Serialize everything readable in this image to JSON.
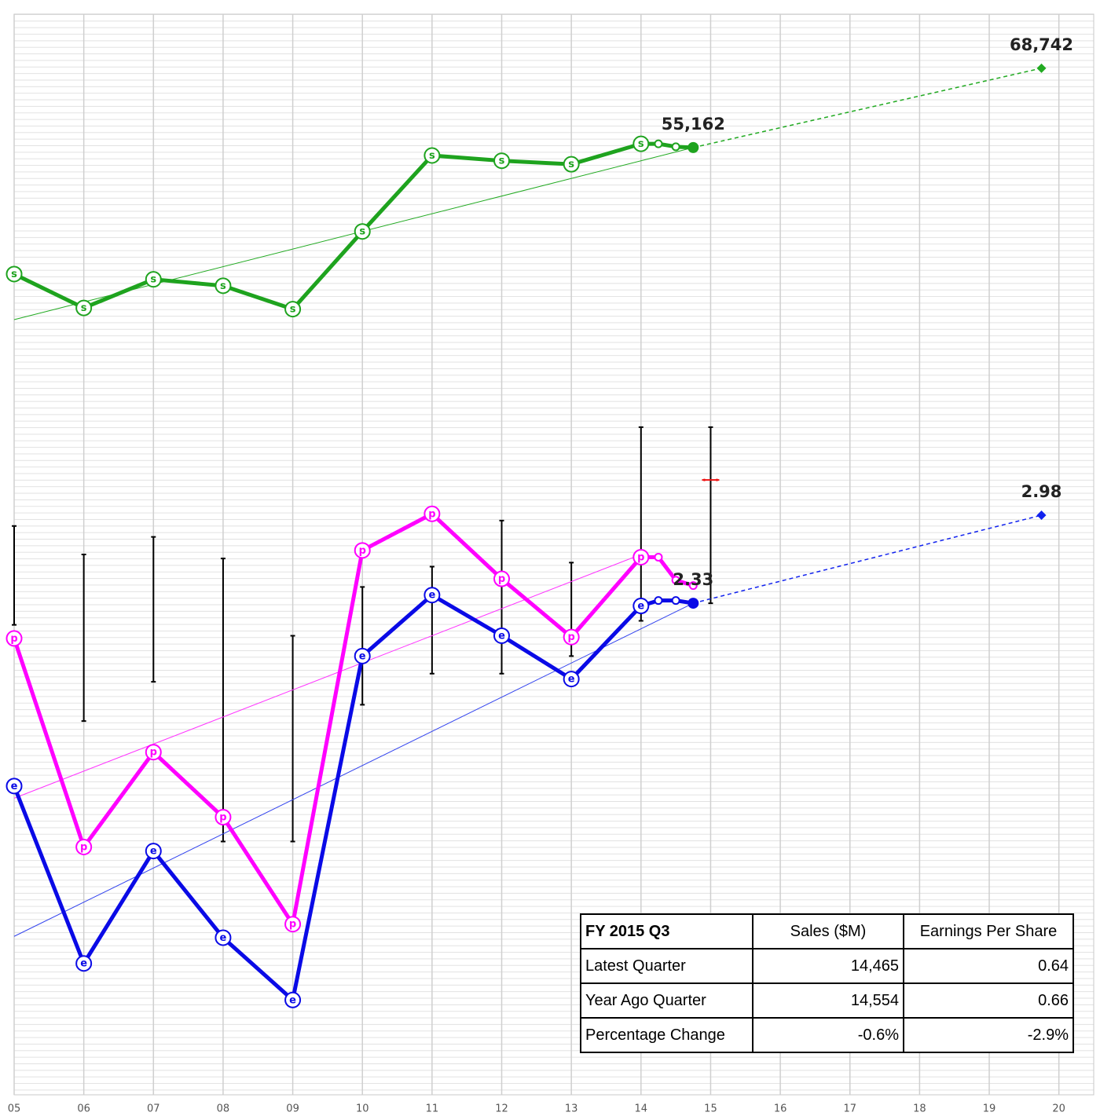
{
  "chart_data": {
    "type": "line",
    "xlim": [
      5,
      20.5
    ],
    "ylim": [
      -107000,
      78000
    ],
    "y2lim": [
      -1.3,
      6.68
    ],
    "grid": true,
    "xticks": [
      {
        "value": 5,
        "label": "05"
      },
      {
        "value": 6,
        "label": "06"
      },
      {
        "value": 7,
        "label": "07"
      },
      {
        "value": 8,
        "label": "08"
      },
      {
        "value": 9,
        "label": "09"
      },
      {
        "value": 10,
        "label": "10"
      },
      {
        "value": 11,
        "label": "11"
      },
      {
        "value": 12,
        "label": "12"
      },
      {
        "value": 13,
        "label": "13"
      },
      {
        "value": 14,
        "label": "14"
      },
      {
        "value": 15,
        "label": "15"
      },
      {
        "value": 16,
        "label": "16"
      },
      {
        "value": 17,
        "label": "17"
      },
      {
        "value": 18,
        "label": "18"
      },
      {
        "value": 19,
        "label": "19"
      },
      {
        "value": 20,
        "label": "20"
      }
    ],
    "series": [
      {
        "style": "thin",
        "color": "#22aa22",
        "x": [
          5,
          14.75
        ],
        "values": [
          25700,
          55162
        ]
      },
      {
        "style": "dashed",
        "color": "#22aa22",
        "x": [
          14.75,
          19.75
        ],
        "values": [
          55162,
          68742
        ],
        "value_labels": [
          null,
          "68,742"
        ],
        "end_marker": "diamond"
      },
      {
        "style": "thick",
        "color": "#1ea31e",
        "marker": "s",
        "last_filled": true,
        "x": [
          5,
          6,
          7,
          8,
          9,
          10,
          11,
          12,
          13,
          14,
          14.25,
          14.5,
          14.75
        ],
        "values": [
          33500,
          27700,
          32600,
          31500,
          27500,
          40800,
          53800,
          52900,
          52300,
          55800,
          55800,
          55300,
          55162
        ],
        "value_labels": [
          null,
          null,
          null,
          null,
          null,
          null,
          null,
          null,
          null,
          null,
          null,
          null,
          "55,162"
        ]
      },
      {
        "style": "range",
        "axis": "y2",
        "color": "#000000",
        "x": [
          5,
          6,
          7,
          8,
          9,
          10,
          11,
          12,
          13,
          14,
          15
        ],
        "high": [
          2.9,
          2.69,
          2.82,
          2.66,
          2.09,
          2.45,
          2.6,
          2.94,
          2.63,
          3.63,
          3.63
        ],
        "low": [
          2.17,
          1.46,
          1.75,
          0.57,
          0.57,
          1.58,
          1.81,
          1.81,
          1.94,
          2.2,
          2.33
        ]
      },
      {
        "style": "tick",
        "axis": "y2",
        "color": "#ee1111",
        "x": [
          15
        ],
        "values": [
          3.24
        ]
      },
      {
        "style": "thin",
        "axis": "y2",
        "color": "#ff33ff",
        "x": [
          5,
          14
        ],
        "values": [
          0.89,
          2.69
        ]
      },
      {
        "style": "thin",
        "axis": "y2",
        "color": "#3344ee",
        "x": [
          5,
          14.75
        ],
        "values": [
          -0.13,
          2.33
        ]
      },
      {
        "style": "dashed",
        "axis": "y2",
        "color": "#1122ee",
        "x": [
          14.75,
          19.75
        ],
        "values": [
          2.33,
          2.98
        ],
        "labeled": [
          1
        ],
        "end_marker": "diamond"
      },
      {
        "style": "thick",
        "axis": "y2",
        "color": "#ff00ff",
        "marker": "p",
        "x": [
          5,
          6,
          7,
          8,
          9,
          10,
          11,
          12,
          13,
          14,
          14.25,
          14.5,
          14.75
        ],
        "values": [
          2.07,
          0.53,
          1.23,
          0.75,
          -0.04,
          2.72,
          2.99,
          2.51,
          2.08,
          2.67,
          2.67,
          2.5,
          2.46
        ]
      },
      {
        "style": "thick",
        "axis": "y2",
        "color": "#0a0ae6",
        "marker": "e",
        "last_filled": true,
        "labeled": [
          12
        ],
        "x": [
          5,
          6,
          7,
          8,
          9,
          10,
          11,
          12,
          13,
          14,
          14.25,
          14.5,
          14.75
        ],
        "values": [
          0.98,
          -0.33,
          0.5,
          -0.14,
          -0.6,
          1.94,
          2.39,
          2.09,
          1.77,
          2.31,
          2.35,
          2.35,
          2.33
        ]
      }
    ]
  },
  "table": {
    "header": [
      "FY 2015 Q3",
      "Sales ($M)",
      "Earnings Per Share"
    ],
    "rows": [
      [
        "Latest Quarter",
        "14,465",
        "0.64"
      ],
      [
        "Year Ago Quarter",
        "14,554",
        "0.66"
      ],
      [
        "Percentage Change",
        "-0.6%",
        "-2.9%"
      ]
    ]
  }
}
